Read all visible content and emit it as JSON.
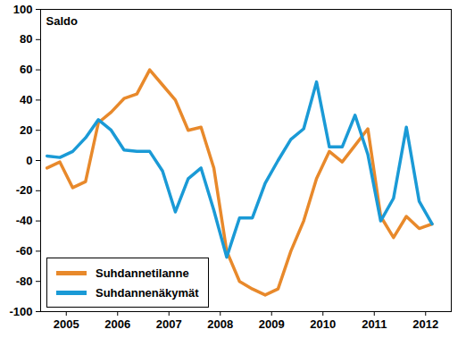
{
  "chart_data": {
    "type": "line",
    "y_label": "Saldo",
    "x": [
      2005.125,
      2005.375,
      2005.625,
      2005.875,
      2006.125,
      2006.375,
      2006.625,
      2006.875,
      2007.125,
      2007.375,
      2007.625,
      2007.875,
      2008.125,
      2008.375,
      2008.625,
      2008.875,
      2009.125,
      2009.375,
      2009.625,
      2009.875,
      2010.125,
      2010.375,
      2010.625,
      2010.875,
      2011.125,
      2011.375,
      2011.625,
      2011.875,
      2012.125,
      2012.375,
      2012.625
    ],
    "series": [
      {
        "name": "Suhdannetilanne",
        "color": "#E8892B",
        "values": [
          -5,
          -1,
          -18,
          -14,
          25,
          32,
          41,
          44,
          60,
          50,
          40,
          20,
          22,
          -5,
          -60,
          -80,
          -85,
          -89,
          -85,
          -60,
          -40,
          -12,
          6,
          -1,
          10,
          21,
          -37,
          -51,
          -37,
          -45,
          -42
        ]
      },
      {
        "name": "Suhdannenäkymät",
        "color": "#1A9AD6",
        "values": [
          3,
          2,
          6,
          15,
          27,
          20,
          7,
          6,
          6,
          -7,
          -34,
          -12,
          -5,
          -33,
          -64,
          -38,
          -38,
          -15,
          0,
          14,
          21,
          52,
          9,
          9,
          30,
          4,
          -40,
          -25,
          22,
          -27,
          -42
        ]
      }
    ],
    "xlim": [
      2005,
      2013
    ],
    "xticks": [
      {
        "value": 2005.5,
        "label": "2005"
      },
      {
        "value": 2006.5,
        "label": "2006"
      },
      {
        "value": 2007.5,
        "label": "2007"
      },
      {
        "value": 2008.5,
        "label": "2008"
      },
      {
        "value": 2009.5,
        "label": "2009"
      },
      {
        "value": 2010.5,
        "label": "2010"
      },
      {
        "value": 2011.5,
        "label": "2011"
      },
      {
        "value": 2012.5,
        "label": "2012"
      }
    ],
    "ylim": [
      -100,
      100
    ],
    "yticks": [
      -100,
      -80,
      -60,
      -40,
      -20,
      0,
      20,
      40,
      60,
      80,
      100
    ],
    "grid": false,
    "legend": "lower left"
  }
}
